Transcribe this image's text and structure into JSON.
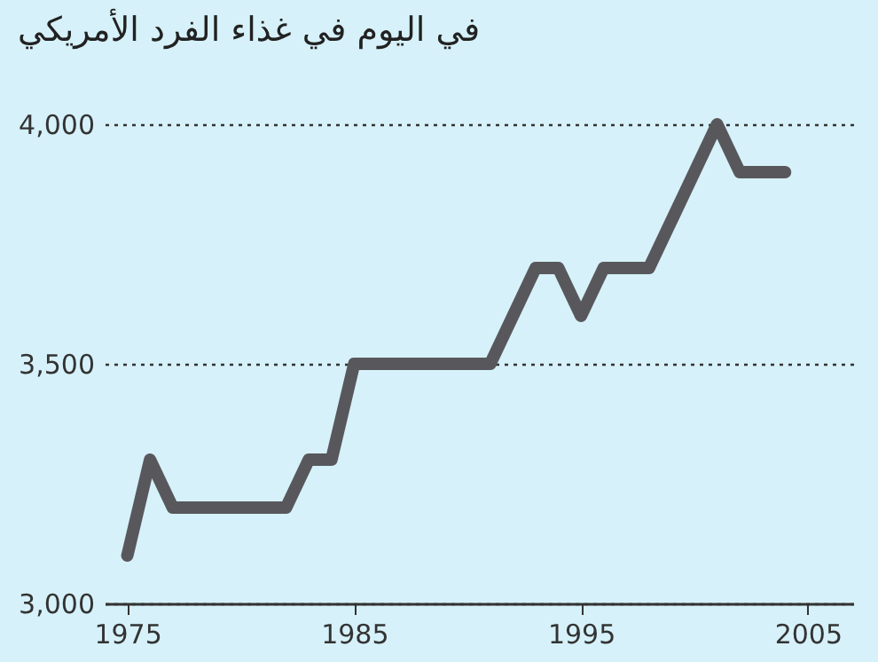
{
  "chart_data": {
    "type": "line",
    "title": "في اليوم في غذاء الفرد الأمريكي",
    "x": [
      1975,
      1976,
      1977,
      1982,
      1983,
      1984,
      1985,
      1991,
      1993,
      1994,
      1995,
      1996,
      1998,
      2001,
      2002,
      2004
    ],
    "series": [
      {
        "color": "#58585c",
        "values": [
          3100,
          3300,
          3200,
          3200,
          3300,
          3300,
          3500,
          3500,
          3700,
          3700,
          3600,
          3700,
          3700,
          4000,
          3900,
          3900
        ]
      }
    ],
    "xlim": [
      1974,
      2007
    ],
    "xticks": [
      1975,
      1985,
      1995,
      2005
    ],
    "ylim": [
      3000,
      4000
    ],
    "yticks": [
      {
        "value": 3000,
        "label": "3,000"
      },
      {
        "value": 3500,
        "label": "3,500"
      },
      {
        "value": 4000,
        "label": "4,000"
      }
    ],
    "grid": "y",
    "line_style": "solid",
    "marker": "none"
  }
}
